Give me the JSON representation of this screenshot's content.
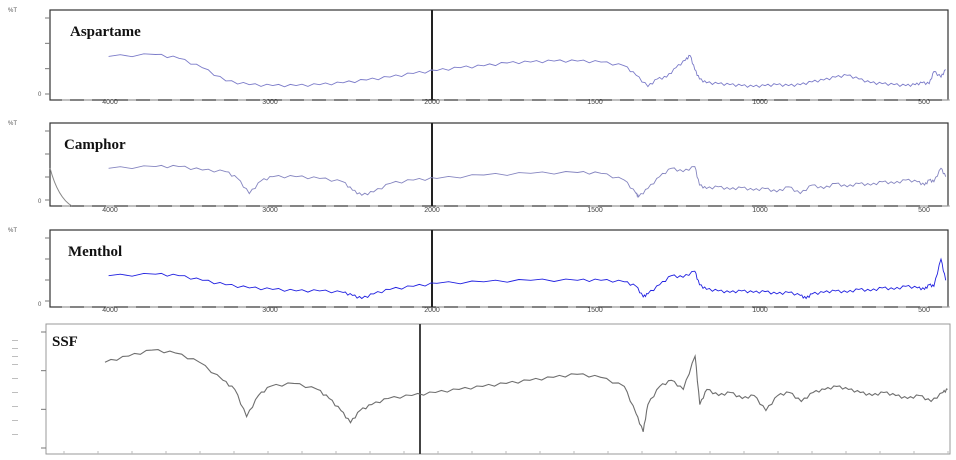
{
  "chart_data": [
    {
      "type": "line",
      "title": "Aspartame",
      "xlabel": "",
      "ylabel": "%T",
      "xlim": [
        4250,
        420
      ],
      "x_ticks": [
        "4000",
        "3000",
        "2000",
        "1500",
        "1000",
        "500"
      ],
      "y_ticks": [
        "0"
      ],
      "color": "#7b7bc9",
      "series": [
        {
          "x": [
            4000,
            3800,
            3700,
            3600,
            3500,
            3400,
            3300,
            3200,
            3100,
            3000,
            2900,
            2800,
            2700,
            2600,
            2500,
            2400,
            2300,
            2200,
            2100,
            2000,
            1900,
            1800,
            1750,
            1700,
            1660,
            1620,
            1580,
            1540,
            1520,
            1500,
            1480,
            1450,
            1400,
            1350,
            1300,
            1250,
            1200,
            1150,
            1100,
            1050,
            1000,
            950,
            900,
            850,
            800,
            750,
            700,
            650,
            600,
            560,
            530,
            500,
            480,
            450,
            430
          ],
          "y": [
            42,
            44,
            40,
            30,
            16,
            12,
            11,
            11,
            12,
            14,
            17,
            20,
            24,
            27,
            30,
            32,
            35,
            36,
            37,
            37,
            36,
            32,
            22,
            10,
            18,
            20,
            30,
            38,
            43,
            28,
            18,
            14,
            13,
            12,
            11,
            10,
            11,
            12,
            11,
            12,
            15,
            17,
            20,
            22,
            18,
            14,
            13,
            12,
            11,
            12,
            14,
            13,
            26,
            20,
            28
          ]
        }
      ]
    },
    {
      "type": "line",
      "title": "Camphor",
      "xlabel": "",
      "ylabel": "%T",
      "xlim": [
        4250,
        420
      ],
      "x_ticks": [
        "4000",
        "3000",
        "2000",
        "1500",
        "1000",
        "500"
      ],
      "y_ticks": [
        "0"
      ],
      "color": "#8585c0",
      "series": [
        {
          "x": [
            4000,
            3800,
            3700,
            3600,
            3500,
            3450,
            3400,
            3350,
            3300,
            3200,
            3100,
            3000,
            2960,
            2920,
            2870,
            2800,
            2700,
            2600,
            2400,
            2200,
            2000,
            1900,
            1800,
            1750,
            1740,
            1700,
            1650,
            1600,
            1550,
            1500,
            1480,
            1450,
            1400,
            1350,
            1300,
            1250,
            1200,
            1150,
            1100,
            1050,
            1000,
            950,
            900,
            850,
            800,
            750,
            700,
            650,
            600,
            550,
            520,
            500,
            480,
            450,
            430
          ],
          "y": [
            40,
            42,
            42,
            38,
            36,
            28,
            10,
            25,
            30,
            30,
            28,
            24,
            14,
            8,
            12,
            22,
            26,
            28,
            32,
            34,
            35,
            34,
            26,
            10,
            6,
            16,
            30,
            40,
            36,
            42,
            20,
            16,
            18,
            15,
            17,
            14,
            16,
            12,
            18,
            10,
            20,
            16,
            22,
            18,
            22,
            20,
            24,
            22,
            26,
            24,
            20,
            26,
            24,
            40,
            30
          ]
        }
      ]
    },
    {
      "type": "line",
      "title": "Menthol",
      "xlabel": "",
      "ylabel": "%T",
      "xlim": [
        4250,
        420
      ],
      "x_ticks": [
        "4000",
        "3000",
        "2000",
        "1500",
        "1000",
        "500"
      ],
      "y_ticks": [
        "0"
      ],
      "color": "#2020e0",
      "series": [
        {
          "x": [
            4000,
            3800,
            3700,
            3600,
            3500,
            3400,
            3300,
            3200,
            3100,
            3000,
            2960,
            2920,
            2870,
            2800,
            2700,
            2600,
            2400,
            2200,
            2000,
            1900,
            1800,
            1750,
            1720,
            1700,
            1650,
            1600,
            1550,
            1500,
            1480,
            1450,
            1400,
            1350,
            1300,
            1250,
            1200,
            1150,
            1100,
            1050,
            1025,
            1000,
            950,
            900,
            850,
            800,
            750,
            700,
            650,
            600,
            550,
            520,
            500,
            480,
            450,
            430
          ],
          "y": [
            36,
            38,
            36,
            30,
            24,
            20,
            18,
            16,
            16,
            14,
            10,
            6,
            12,
            18,
            22,
            26,
            28,
            30,
            30,
            30,
            28,
            22,
            8,
            12,
            24,
            36,
            34,
            42,
            24,
            18,
            16,
            14,
            16,
            14,
            15,
            12,
            14,
            10,
            6,
            12,
            14,
            16,
            14,
            18,
            16,
            20,
            18,
            22,
            20,
            18,
            24,
            22,
            58,
            30
          ]
        }
      ]
    },
    {
      "type": "line",
      "title": "SSF",
      "xlabel": "",
      "ylabel": "",
      "xlim": [
        4250,
        420
      ],
      "x_ticks": [],
      "y_ticks": [],
      "color": "#6e6e6e",
      "series": [
        {
          "x": [
            4000,
            3900,
            3800,
            3700,
            3600,
            3500,
            3450,
            3400,
            3350,
            3300,
            3200,
            3100,
            3050,
            3000,
            2960,
            2920,
            2870,
            2800,
            2700,
            2600,
            2500,
            2400,
            2300,
            2200,
            2100,
            2000,
            1900,
            1800,
            1750,
            1720,
            1700,
            1650,
            1600,
            1550,
            1500,
            1480,
            1450,
            1400,
            1350,
            1300,
            1250,
            1200,
            1150,
            1100,
            1050,
            1000,
            950,
            900,
            850,
            800,
            750,
            700,
            650,
            600,
            550,
            500,
            450,
            430
          ],
          "y": [
            58,
            62,
            66,
            64,
            58,
            46,
            40,
            22,
            36,
            42,
            44,
            40,
            34,
            26,
            18,
            26,
            30,
            34,
            36,
            38,
            40,
            42,
            44,
            46,
            48,
            50,
            48,
            42,
            24,
            12,
            30,
            42,
            46,
            40,
            62,
            30,
            40,
            36,
            38,
            34,
            36,
            26,
            36,
            38,
            32,
            38,
            40,
            42,
            40,
            38,
            36,
            38,
            36,
            34,
            36,
            32,
            38,
            40
          ]
        }
      ]
    }
  ]
}
